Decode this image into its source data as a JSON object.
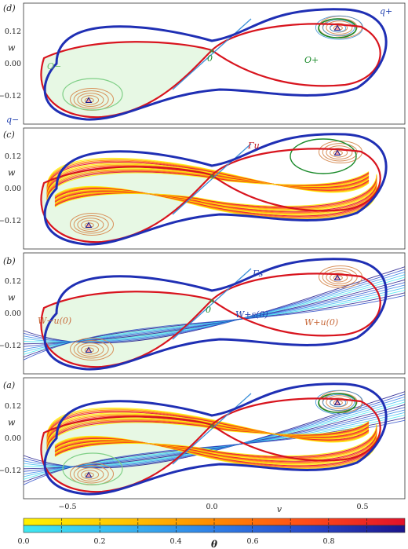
{
  "panels": [
    {
      "id": "d",
      "label": "(d)",
      "annotations": [
        {
          "text": "q+",
          "color": "#1f3fae"
        },
        {
          "text": "q−",
          "color": "#1f3fae"
        },
        {
          "text": "O−",
          "color": "#6abf6f"
        },
        {
          "text": "O+",
          "color": "#1a8a2a"
        },
        {
          "text": "0",
          "color": "#1a8a2a"
        }
      ]
    },
    {
      "id": "c",
      "label": "(c)",
      "annotations": [
        {
          "text": "Γu",
          "color": "#c0141e"
        }
      ]
    },
    {
      "id": "b",
      "label": "(b)",
      "annotations": [
        {
          "text": "Γs",
          "color": "#1f3fae"
        },
        {
          "text": "W−u(0)",
          "color": "#c8693a"
        },
        {
          "text": "0",
          "color": "#1a8a2a"
        },
        {
          "text": "W+s(0)",
          "color": "#1f3fae"
        },
        {
          "text": "W+u(0)",
          "color": "#c8693a"
        }
      ]
    },
    {
      "id": "a",
      "label": "(a)",
      "annotations": []
    }
  ],
  "axes": {
    "ylabel": "w",
    "xlabel": "v",
    "yticks": [
      "0.12",
      "0.00",
      "−0.12"
    ],
    "xticks": [
      "−0.5",
      "0.0",
      "0.5"
    ]
  },
  "colorbar": {
    "label": "θ",
    "ticks": [
      "0.0",
      "0.2",
      "0.4",
      "0.6",
      "0.8"
    ],
    "top_colors": [
      "#fff200",
      "#ffc800",
      "#ff8a00",
      "#ff4a1a",
      "#e0102a"
    ],
    "bottom_colors": [
      "#3fe8f0",
      "#38b8f0",
      "#2f7fe6",
      "#2848c8",
      "#1a148a"
    ]
  },
  "colors": {
    "boundary": "#1f2fb4",
    "manifold_red": "#d8141e",
    "stable_blue": "#3a8fd8",
    "fill_green": "#e7f8e4",
    "orbit_green": "#1a8a2a",
    "orbit_light_green": "#7fcf86",
    "equilibrium": "#1a1a8a"
  }
}
